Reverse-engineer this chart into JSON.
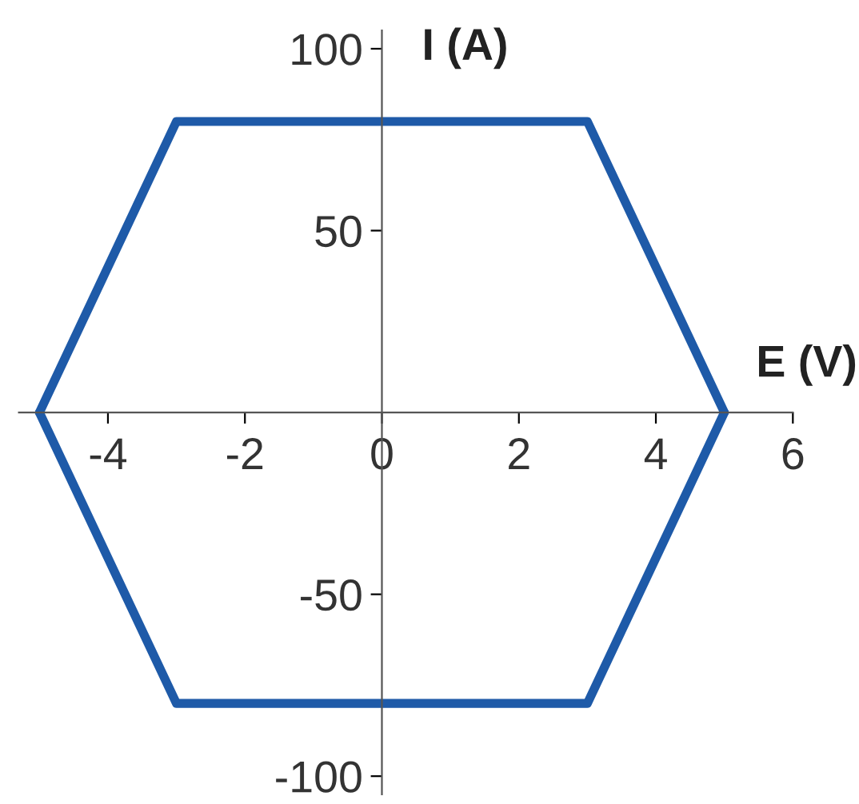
{
  "chart_data": {
    "type": "line",
    "xlabel": "E (V)",
    "ylabel": "I (A)",
    "x": [
      -5,
      -3,
      3,
      5
    ],
    "series": [
      {
        "color": "#1e5aa8",
        "values": [
          0,
          80,
          80,
          0
        ]
      },
      {
        "color": "#1e5aa8",
        "values": [
          0,
          -80,
          -80,
          0
        ]
      }
    ],
    "xlim": [
      -5.3,
      6
    ],
    "ylim": [
      -105,
      105
    ],
    "xticks": [
      -4,
      -2,
      0,
      2,
      4,
      6
    ],
    "yticks": [
      -100,
      -50,
      50,
      100
    ],
    "grid": false,
    "marker": "none",
    "line_style": "solid"
  }
}
